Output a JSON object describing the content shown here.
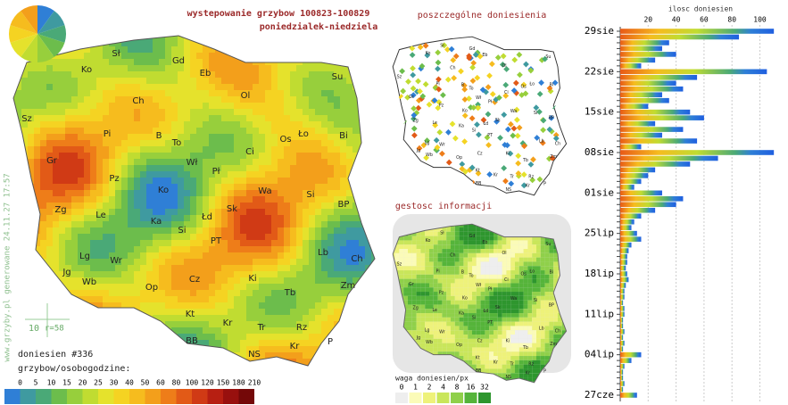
{
  "header": {
    "title": "wystepowanie grzybow 100823-100829",
    "subtitle": "poniedzialek-niedziela"
  },
  "main_map": {
    "regions": [
      "Sł",
      "Gd",
      "Eb",
      "Ko",
      "Su",
      "Ch",
      "Ol",
      "Sz",
      "Pi",
      "B",
      "To",
      "Ło",
      "Bi",
      "Os",
      "Gr",
      "Ci",
      "Wł",
      "Pł",
      "Pz",
      "Ko",
      "Wa",
      "Si",
      "Zg",
      "Le",
      "Ka",
      "Łd",
      "Sk",
      "BP",
      "Si",
      "PT",
      "Lb",
      "Ch",
      "Lg",
      "Wr",
      "Jg",
      "Wb",
      "Op",
      "Cz",
      "Ki",
      "Zm",
      "Tb",
      "Kt",
      "Kr",
      "Tr",
      "Rz",
      "BB",
      "Kr",
      "NS",
      "P"
    ],
    "watermark": "www.grzyby.pl generowane 24.11.27 17:57",
    "scale_value": "10",
    "scale_radius": "r=58",
    "report_count": "doniesien #336",
    "legend_title": "grzybow/osobogodzine:",
    "legend_ticks": [
      0,
      5,
      10,
      15,
      20,
      25,
      30,
      40,
      50,
      60,
      80,
      100,
      120,
      150,
      180,
      210
    ],
    "legend_colors": [
      "#2f7fd6",
      "#3f9aa0",
      "#4aa977",
      "#6cbd4c",
      "#97cf3c",
      "#c0dc31",
      "#e5e22c",
      "#f5d322",
      "#f6bc1e",
      "#f39f1b",
      "#ee7d19",
      "#e25a17",
      "#d03a15",
      "#b71f12",
      "#98100e",
      "#740808"
    ]
  },
  "detail_map": {
    "title": "poszczególne doniesienia"
  },
  "density_map": {
    "title": "gestosc informacji",
    "legend_title": "waga doniesien/px",
    "legend_ticks": [
      0,
      1,
      2,
      4,
      8,
      16,
      32
    ],
    "legend_colors": [
      "#eeeeee",
      "#fbfbb8",
      "#eef27a",
      "#c9e65a",
      "#8fd04a",
      "#55b43a",
      "#2e962e"
    ]
  },
  "chart_data": {
    "type": "bar",
    "orientation": "horizontal",
    "xlabel": "ilosc doniesien",
    "categories": [
      "29sie",
      null,
      null,
      null,
      null,
      null,
      null,
      "22sie",
      null,
      null,
      null,
      null,
      null,
      null,
      "15sie",
      null,
      null,
      null,
      null,
      null,
      null,
      "08sie",
      null,
      null,
      null,
      null,
      null,
      null,
      "01sie",
      null,
      null,
      null,
      null,
      null,
      null,
      "25lip",
      null,
      null,
      null,
      null,
      null,
      null,
      "18lip",
      null,
      null,
      null,
      null,
      null,
      null,
      "11lip",
      null,
      null,
      null,
      null,
      null,
      null,
      "04lip",
      null,
      null,
      null,
      null,
      null,
      null,
      "27cze"
    ],
    "values": [
      110,
      85,
      35,
      30,
      40,
      25,
      15,
      105,
      55,
      40,
      45,
      30,
      35,
      20,
      50,
      60,
      25,
      45,
      30,
      55,
      15,
      110,
      70,
      50,
      25,
      20,
      15,
      10,
      30,
      45,
      40,
      25,
      15,
      10,
      8,
      12,
      15,
      8,
      6,
      5,
      5,
      4,
      5,
      6,
      4,
      3,
      3,
      2,
      3,
      3,
      2,
      2,
      3,
      2,
      3,
      2,
      15,
      8,
      3,
      2,
      2,
      3,
      2,
      12
    ],
    "xlim": [
      0,
      115
    ],
    "xticks": [
      20,
      40,
      60,
      80,
      100
    ],
    "grid": true
  }
}
